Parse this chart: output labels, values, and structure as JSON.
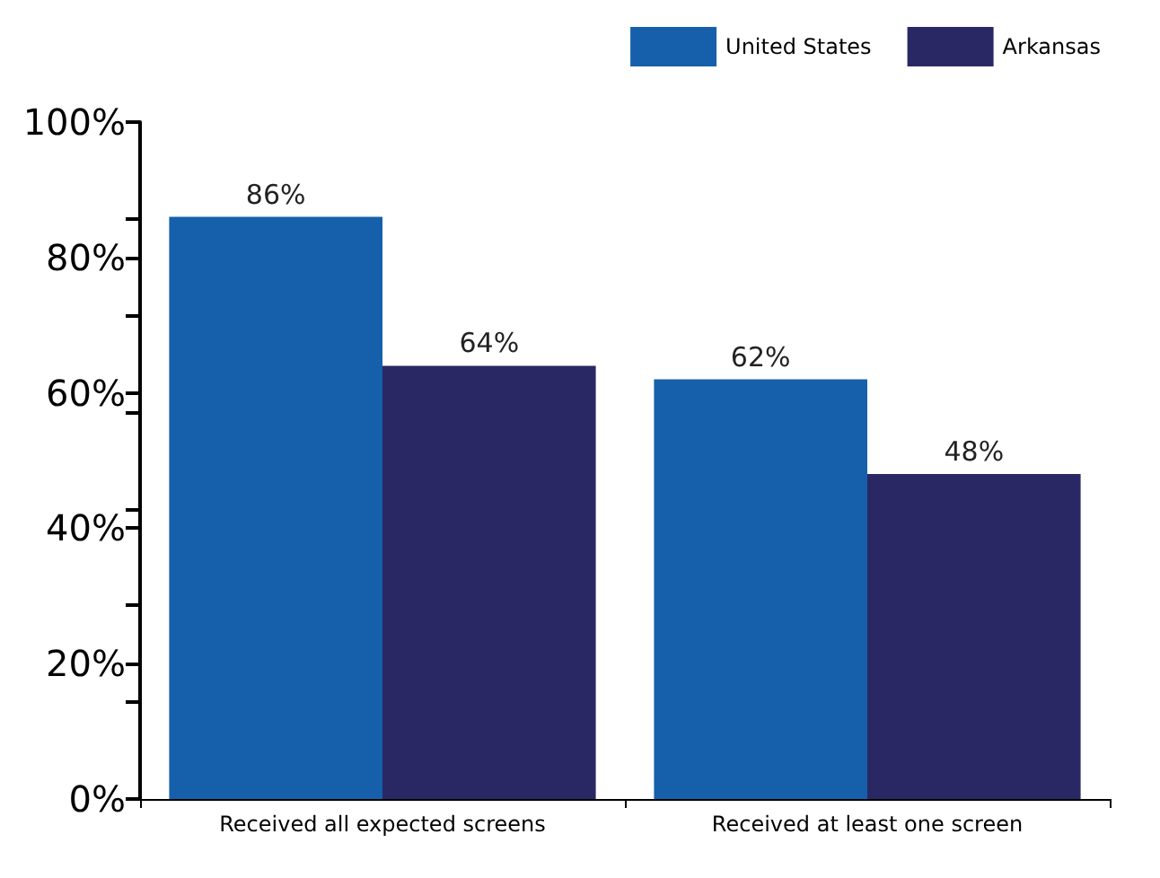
{
  "chart_data": {
    "type": "bar",
    "categories": [
      "Received all expected screens",
      "Received at least one screen"
    ],
    "series": [
      {
        "name": "United States",
        "color": "#1660ab",
        "values": [
          86,
          62
        ],
        "value_labels": [
          "86%",
          "62%"
        ]
      },
      {
        "name": "Arkansas",
        "color": "#2a2864",
        "values": [
          64,
          48
        ],
        "value_labels": [
          "64%",
          "48%"
        ]
      }
    ],
    "ylim": [
      0,
      100
    ],
    "yticks": [
      {
        "value": 0,
        "label": "0%"
      },
      {
        "value": 14.3,
        "label": null
      },
      {
        "value": 20,
        "label": "20%"
      },
      {
        "value": 28.6,
        "label": null
      },
      {
        "value": 40,
        "label": "40%"
      },
      {
        "value": 42.9,
        "label": null
      },
      {
        "value": 57.1,
        "label": null
      },
      {
        "value": 60,
        "label": "60%"
      },
      {
        "value": 71.4,
        "label": null
      },
      {
        "value": 80,
        "label": "80%"
      },
      {
        "value": 85.7,
        "label": null
      },
      {
        "value": 100,
        "label": "100%"
      }
    ],
    "legend": "top right",
    "grid": false
  }
}
